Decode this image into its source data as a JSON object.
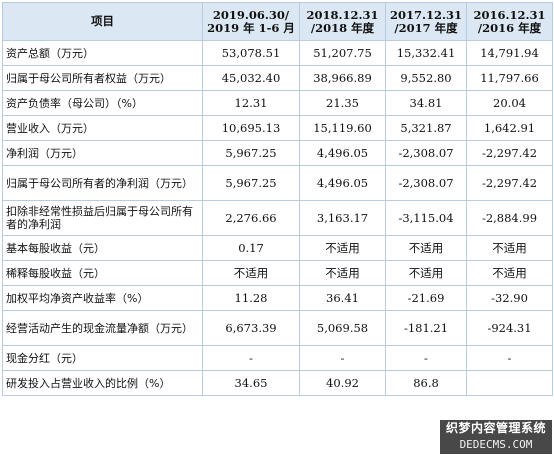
{
  "table": {
    "headers": [
      "项目",
      "2019.06.30/\n2019 年 1-6 月",
      "2018.12.31\n/2018 年度",
      "2017.12.31\n/2017 年度",
      "2016.12.31\n/2016 年度"
    ],
    "rows": [
      {
        "label": "资产总额（万元）",
        "values": [
          "53,078.51",
          "51,207.75",
          "15,332.41",
          "14,791.94"
        ]
      },
      {
        "label": "归属于母公司所有者权益（万元）",
        "values": [
          "45,032.40",
          "38,966.89",
          "9,552.80",
          "11,797.66"
        ]
      },
      {
        "label": "资产负债率（母公司）（%）",
        "values": [
          "12.31",
          "21.35",
          "34.81",
          "20.04"
        ]
      },
      {
        "label": "营业收入（万元）",
        "values": [
          "10,695.13",
          "15,119.60",
          "5,321.87",
          "1,642.91"
        ]
      },
      {
        "label": "净利润（万元）",
        "values": [
          "5,967.25",
          "4,496.05",
          "-2,308.07",
          "-2,297.42"
        ]
      },
      {
        "label": "归属于母公司所有者的净利润（万元）",
        "values": [
          "5,967.25",
          "4,496.05",
          "-2,308.07",
          "-2,297.42"
        ]
      },
      {
        "label": "扣除非经常性损益后归属于母公司所有者的净利润",
        "values": [
          "2,276.66",
          "3,163.17",
          "-3,115.04",
          "-2,884.99"
        ]
      },
      {
        "label": "基本每股收益（元）",
        "values": [
          "0.17",
          "不适用",
          "不适用",
          "不适用"
        ]
      },
      {
        "label": "稀释每股收益（元）",
        "values": [
          "不适用",
          "不适用",
          "不适用",
          "不适用"
        ]
      },
      {
        "label": "加权平均净资产收益率（%）",
        "values": [
          "11.28",
          "36.41",
          "-21.69",
          "-32.90"
        ]
      },
      {
        "label": "经营活动产生的现金流量净额（万元）",
        "values": [
          "6,673.39",
          "5,069.58",
          "-181.21",
          "-924.31"
        ]
      },
      {
        "label": "现金分红（元）",
        "values": [
          "-",
          "-",
          "-",
          "-"
        ]
      },
      {
        "label": "研发投入占营业收入的比例（%）",
        "values": [
          "34.65",
          "40.92",
          "86.8",
          ""
        ]
      }
    ]
  },
  "watermark": {
    "line1": "织梦内容管理系统",
    "line2": "DEDECMS.COM"
  }
}
